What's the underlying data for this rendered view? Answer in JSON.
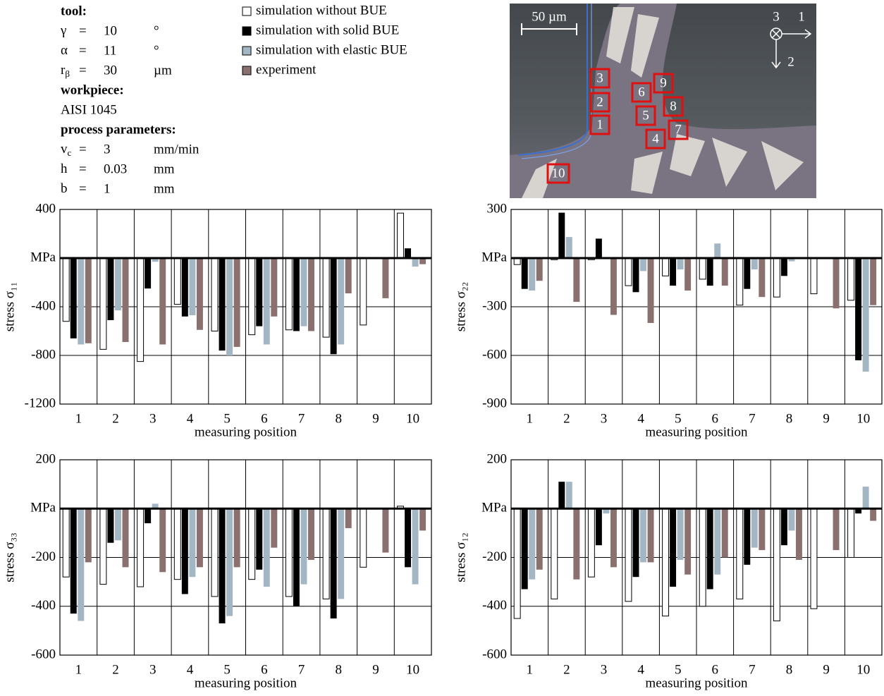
{
  "parameters": {
    "equals": "=",
    "tool_heading": "tool:",
    "tool": [
      {
        "symbol": "γ",
        "value": 10,
        "unit": "°"
      },
      {
        "symbol": "α",
        "value": 11,
        "unit": "°"
      },
      {
        "symbol": "r",
        "subscript": "β",
        "value": 30,
        "unit": "µm"
      }
    ],
    "workpiece_heading": "workpiece:",
    "workpiece": "AISI 1045",
    "process_heading": "process parameters:",
    "process": [
      {
        "symbol": "v",
        "subscript": "c",
        "value": 3,
        "unit": "mm/min"
      },
      {
        "symbol": "h",
        "value": 0.03,
        "unit": "mm"
      },
      {
        "symbol": "b",
        "value": 1,
        "unit": "mm"
      }
    ]
  },
  "micrograph": {
    "scale_bar": "50 µm",
    "axes": [
      "3",
      "1",
      "2"
    ],
    "positions": [
      "1",
      "2",
      "3",
      "4",
      "5",
      "6",
      "7",
      "8",
      "9",
      "10"
    ]
  },
  "chart_data": [
    {
      "type": "bar",
      "y_label": "stress σ₁₁",
      "x_label": "measuring position",
      "categories": [
        "1",
        "2",
        "3",
        "4",
        "5",
        "6",
        "7",
        "8",
        "9",
        "10"
      ],
      "ylim": [
        -1200,
        400
      ],
      "yticks": [
        -1200,
        -800,
        -400,
        {
          "value": 0,
          "label": "MPa"
        },
        400
      ],
      "grid": true,
      "series": [
        {
          "name": "simulation without BUE",
          "color": "#ffffff",
          "values": [
            -520,
            -750,
            -850,
            -380,
            -600,
            -630,
            -590,
            -650,
            -550,
            370
          ]
        },
        {
          "name": "simulation with solid  BUE",
          "color": "#000000",
          "values": [
            -660,
            -510,
            -250,
            -480,
            -760,
            -560,
            -600,
            -790,
            null,
            80
          ]
        },
        {
          "name": "simulation with elastic BUE",
          "color": "#a3b6c4",
          "values": [
            -710,
            -430,
            -30,
            -470,
            -800,
            -710,
            -560,
            -710,
            null,
            -70
          ]
        },
        {
          "name": "experiment",
          "color": "#8a706e",
          "values": [
            -700,
            -690,
            -710,
            -590,
            -730,
            -480,
            -600,
            -290,
            -330,
            -50
          ]
        }
      ]
    },
    {
      "type": "bar",
      "y_label": "stress σ₂₂",
      "x_label": "measuring position",
      "categories": [
        "1",
        "2",
        "3",
        "4",
        "5",
        "6",
        "7",
        "8",
        "9",
        "10"
      ],
      "ylim": [
        -900,
        300
      ],
      "yticks": [
        -900,
        -600,
        -300,
        {
          "value": 0,
          "label": "MPa"
        },
        300
      ],
      "grid": true,
      "series": [
        {
          "values": [
            -40,
            -10,
            -10,
            -170,
            -110,
            -130,
            -290,
            -240,
            -220,
            -260
          ]
        },
        {
          "values": [
            -190,
            280,
            120,
            -210,
            -170,
            -170,
            -190,
            -110,
            null,
            -630
          ]
        },
        {
          "values": [
            -200,
            130,
            null,
            -80,
            -70,
            90,
            -70,
            -20,
            null,
            -700
          ]
        },
        {
          "values": [
            -140,
            -270,
            -350,
            -400,
            -200,
            -170,
            -240,
            null,
            -310,
            -290
          ]
        }
      ]
    },
    {
      "type": "bar",
      "y_label": "stress σ₃₃",
      "x_label": "measuring position",
      "categories": [
        "1",
        "2",
        "3",
        "4",
        "5",
        "6",
        "7",
        "8",
        "9",
        "10"
      ],
      "ylim": [
        -600,
        200
      ],
      "yticks": [
        -600,
        -400,
        -200,
        {
          "value": 0,
          "label": "MPa"
        },
        200
      ],
      "grid": true,
      "series": [
        {
          "values": [
            -280,
            -310,
            -320,
            -290,
            -360,
            -290,
            -360,
            -370,
            -240,
            10
          ]
        },
        {
          "values": [
            -430,
            -140,
            -60,
            -350,
            -470,
            -250,
            -400,
            -450,
            null,
            -240
          ]
        },
        {
          "values": [
            -460,
            -130,
            20,
            -280,
            -440,
            -320,
            -310,
            -370,
            null,
            -310
          ]
        },
        {
          "values": [
            -220,
            -240,
            -260,
            -240,
            -240,
            -160,
            -210,
            -80,
            -180,
            -90
          ]
        }
      ]
    },
    {
      "type": "bar",
      "y_label": "stress σ₁₂",
      "x_label": "measuring position",
      "categories": [
        "1",
        "2",
        "3",
        "4",
        "5",
        "6",
        "7",
        "8",
        "9",
        "10"
      ],
      "ylim": [
        -600,
        200
      ],
      "yticks": [
        -600,
        -400,
        -200,
        {
          "value": 0,
          "label": "MPa"
        },
        200
      ],
      "grid": true,
      "series": [
        {
          "values": [
            -450,
            -370,
            -280,
            -380,
            -440,
            -400,
            -370,
            -460,
            -410,
            -200
          ]
        },
        {
          "values": [
            -330,
            110,
            -150,
            -280,
            -320,
            -330,
            -230,
            -150,
            null,
            -20
          ]
        },
        {
          "values": [
            -290,
            110,
            -20,
            -220,
            -210,
            -270,
            -160,
            -90,
            null,
            90
          ]
        },
        {
          "values": [
            -250,
            -290,
            -240,
            -220,
            -270,
            -200,
            -170,
            -210,
            -170,
            -50
          ]
        }
      ]
    }
  ]
}
